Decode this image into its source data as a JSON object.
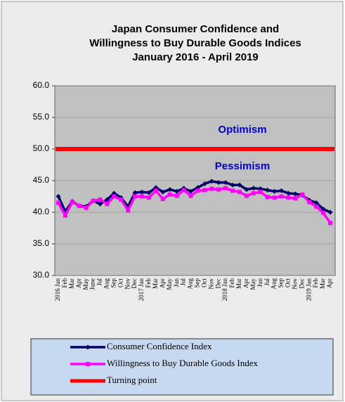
{
  "chart_data": {
    "type": "line",
    "title": [
      "Japan Consumer Confidence and",
      "Willingness to Buy Durable Goods Indices",
      "January 2016 - April 2019"
    ],
    "annotations": [
      {
        "text": "Optimism",
        "value": 50,
        "side": "above"
      },
      {
        "text": "Pessimism",
        "value": 50,
        "side": "below"
      }
    ],
    "annotation_color": "#0000cc",
    "categories": [
      "2016 Jan",
      "Feb",
      "Mar",
      "Apr",
      "May",
      "June",
      "Jul",
      "Aug",
      "Sep",
      "Oct",
      "Nov",
      "Dec",
      "2017 Jan",
      "Feb",
      "Mar",
      "Apr",
      "May",
      "Jun",
      "Jul",
      "Aug",
      "Sep",
      "Oct",
      "Nov",
      "Dec",
      "2018 Jan",
      "Feb",
      "Mar",
      "Apr",
      "May",
      "Jun",
      "Jul",
      "Aug",
      "Sep",
      "Oct",
      "Nov",
      "Dec",
      "2019 Jan",
      "Feb",
      "Mar",
      "Apr"
    ],
    "series": [
      {
        "name": "Consumer Confidence Index",
        "color": "#000066",
        "marker": "diamond",
        "values": [
          42.5,
          40.1,
          41.7,
          41.0,
          40.9,
          41.8,
          41.3,
          42.0,
          43.0,
          42.3,
          40.9,
          43.1,
          43.2,
          43.1,
          43.9,
          43.2,
          43.6,
          43.3,
          43.8,
          43.3,
          43.9,
          44.5,
          44.9,
          44.7,
          44.7,
          44.3,
          44.3,
          43.6,
          43.8,
          43.7,
          43.5,
          43.3,
          43.4,
          43.0,
          42.9,
          42.7,
          41.9,
          41.5,
          40.5,
          40.0
        ]
      },
      {
        "name": "Willingness to Buy Durable Goods Index",
        "color": "#ff00ff",
        "marker": "square",
        "values": [
          41.5,
          39.5,
          41.6,
          41.0,
          40.7,
          41.8,
          42.0,
          41.3,
          42.5,
          42.0,
          40.3,
          42.5,
          42.5,
          42.3,
          43.4,
          42.1,
          42.8,
          42.6,
          43.5,
          42.6,
          43.4,
          43.5,
          43.7,
          43.6,
          43.8,
          43.4,
          43.2,
          42.6,
          43.0,
          43.2,
          42.4,
          42.3,
          42.5,
          42.3,
          42.2,
          42.8,
          41.6,
          40.9,
          39.9,
          38.3
        ]
      }
    ],
    "reference_line": {
      "name": "Turning point",
      "value": 50,
      "color": "#ff0000"
    },
    "ylim": [
      30,
      60
    ],
    "yticks": [
      {
        "value": 30,
        "label": "30.0"
      },
      {
        "value": 35,
        "label": "35.0"
      },
      {
        "value": 40,
        "label": "40.0"
      },
      {
        "value": 45,
        "label": "45.0"
      },
      {
        "value": 50,
        "label": "50.0"
      },
      {
        "value": 55,
        "label": "55.0"
      },
      {
        "value": 60,
        "label": "60.0"
      }
    ],
    "grid": true
  }
}
